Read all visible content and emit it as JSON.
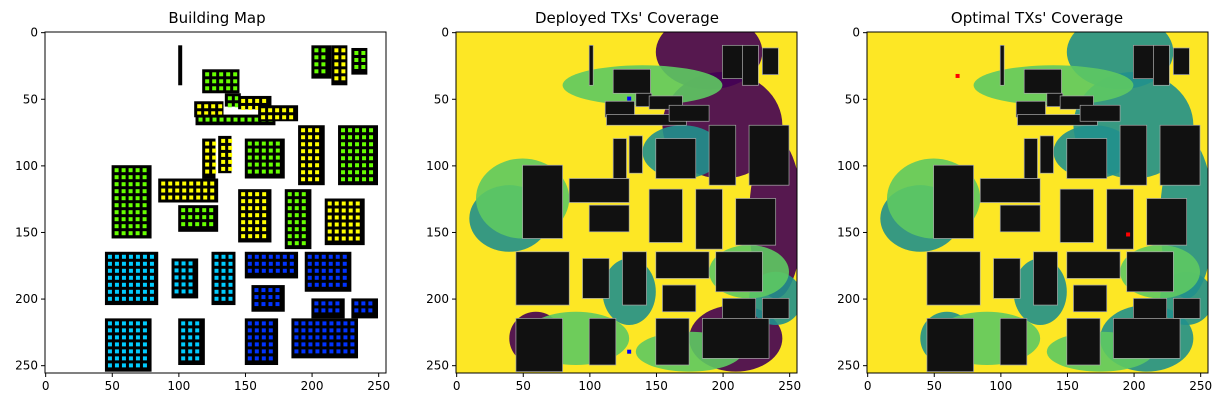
{
  "chart_data": [
    {
      "type": "heatmap",
      "title": "Building Map",
      "xlim": [
        0,
        255
      ],
      "ylim": [
        255,
        0
      ],
      "xticks": [
        0,
        50,
        100,
        150,
        200,
        250
      ],
      "yticks": [
        0,
        50,
        100,
        150,
        200,
        250
      ],
      "background_color": "#ffffff",
      "building_color": "#000000",
      "room_colors": [
        "#ffff00",
        "#66ff00",
        "#00ccff",
        "#0033ff"
      ]
    },
    {
      "type": "heatmap",
      "title": "Deployed TXs' Coverage",
      "xlim": [
        0,
        255
      ],
      "ylim": [
        255,
        0
      ],
      "xticks": [
        0,
        50,
        100,
        150,
        200,
        250
      ],
      "yticks": [
        0,
        50,
        100,
        150,
        200,
        250
      ],
      "colormap": [
        "#440154",
        "#21908c",
        "#5ec962",
        "#fde725"
      ],
      "building_color": "#111111",
      "tx_color": "#0000ff"
    },
    {
      "type": "heatmap",
      "title": "Optimal TXs' Coverage",
      "xlim": [
        0,
        255
      ],
      "ylim": [
        255,
        0
      ],
      "xticks": [
        0,
        50,
        100,
        150,
        200,
        250
      ],
      "yticks": [
        0,
        50,
        100,
        150,
        200,
        250
      ],
      "colormap": [
        "#440154",
        "#21908c",
        "#5ec962",
        "#fde725"
      ],
      "building_color": "#111111",
      "tx_color": "#ff0000"
    }
  ]
}
